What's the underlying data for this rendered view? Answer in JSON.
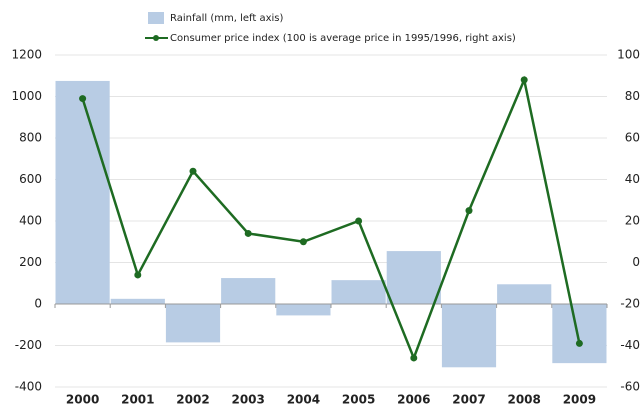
{
  "chart_data": {
    "type": "bar",
    "categories": [
      "2000",
      "2001",
      "2002",
      "2003",
      "2004",
      "2005",
      "2006",
      "2007",
      "2008",
      "2009"
    ],
    "series": [
      {
        "name": "Rainfall (mm, left axis)",
        "color": "#b8cce4",
        "type": "bar",
        "values": [
          1075,
          25,
          -185,
          125,
          -55,
          115,
          255,
          -305,
          95,
          -285
        ]
      },
      {
        "name": "Consumer price index (100 is average price in 1995/1996, right axis)",
        "color": "#1e6b22",
        "type": "line",
        "axis": "y2",
        "values": [
          79,
          -6,
          44,
          14,
          10,
          20,
          -46,
          25,
          88,
          -39
        ]
      }
    ],
    "ylim": [
      -400,
      1200
    ],
    "yticks": [
      -400,
      -200,
      0,
      200,
      400,
      600,
      800,
      1000,
      1200
    ],
    "y2lim": [
      -60,
      100
    ],
    "y2ticks": [
      -60,
      -40,
      -20,
      0,
      20,
      40,
      60,
      80,
      100
    ],
    "grid": true
  }
}
